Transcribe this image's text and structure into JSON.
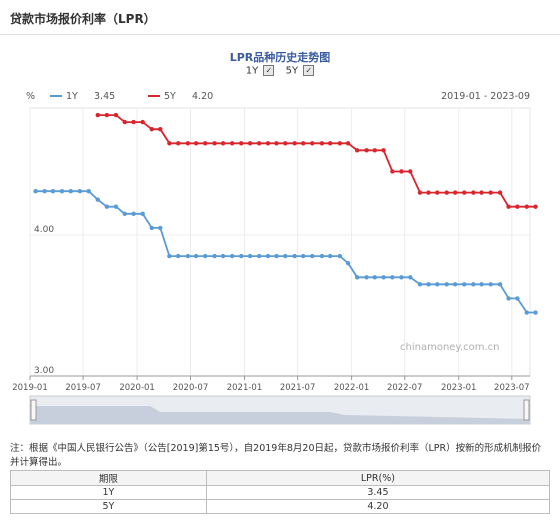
{
  "page": {
    "title": "贷款市场报价利率（LPR）"
  },
  "toggles": [
    {
      "label": "1Y",
      "checked": true,
      "mark": "✓"
    },
    {
      "label": "5Y",
      "checked": true,
      "mark": "✓"
    }
  ],
  "note": "注：根据《中国人民银行公告》（公告[2019]第15号），自2019年8月20日起，贷款市场报价利率（LPR）按新的形成机制报价并计算得出。",
  "table": {
    "headers": [
      "期限",
      "LPR(%)"
    ],
    "rows": [
      {
        "term": "1Y",
        "rate": "3.45"
      },
      {
        "term": "5Y",
        "rate": "4.20"
      }
    ]
  },
  "chart_data": {
    "type": "line",
    "title": "LPR品种历史走势图",
    "unit_label": "%",
    "date_range": "2019-01 - 2023-09",
    "watermark": "chinamoney.com.cn",
    "x_range": [
      "2019-01-01",
      "2023-09-01"
    ],
    "ylim": [
      3.0,
      4.9
    ],
    "y_ticks": [
      {
        "value": 3.0,
        "label": "3.00"
      },
      {
        "value": 4.0,
        "label": "4.00"
      }
    ],
    "x_ticks": [
      "2019-01",
      "2019-07",
      "2020-01",
      "2020-07",
      "2021-01",
      "2021-07",
      "2022-01",
      "2022-07",
      "2023-01",
      "2023-07"
    ],
    "grid": true,
    "legend_position": "top-left",
    "series": [
      {
        "name": "1Y",
        "latest": "3.45",
        "color": "#5b9bd5",
        "points": [
          [
            "2019-01-20",
            4.31
          ],
          [
            "2019-02-20",
            4.31
          ],
          [
            "2019-03-20",
            4.31
          ],
          [
            "2019-04-20",
            4.31
          ],
          [
            "2019-05-20",
            4.31
          ],
          [
            "2019-06-20",
            4.31
          ],
          [
            "2019-07-20",
            4.31
          ],
          [
            "2019-08-20",
            4.25
          ],
          [
            "2019-09-20",
            4.2
          ],
          [
            "2019-10-21",
            4.2
          ],
          [
            "2019-11-20",
            4.15
          ],
          [
            "2019-12-20",
            4.15
          ],
          [
            "2020-01-20",
            4.15
          ],
          [
            "2020-02-20",
            4.05
          ],
          [
            "2020-03-20",
            4.05
          ],
          [
            "2020-04-20",
            3.85
          ],
          [
            "2020-05-20",
            3.85
          ],
          [
            "2020-06-22",
            3.85
          ],
          [
            "2020-07-20",
            3.85
          ],
          [
            "2020-08-20",
            3.85
          ],
          [
            "2020-09-21",
            3.85
          ],
          [
            "2020-10-20",
            3.85
          ],
          [
            "2020-11-20",
            3.85
          ],
          [
            "2020-12-21",
            3.85
          ],
          [
            "2021-01-20",
            3.85
          ],
          [
            "2021-02-20",
            3.85
          ],
          [
            "2021-03-22",
            3.85
          ],
          [
            "2021-04-20",
            3.85
          ],
          [
            "2021-05-20",
            3.85
          ],
          [
            "2021-06-21",
            3.85
          ],
          [
            "2021-07-20",
            3.85
          ],
          [
            "2021-08-20",
            3.85
          ],
          [
            "2021-09-22",
            3.85
          ],
          [
            "2021-10-20",
            3.85
          ],
          [
            "2021-11-22",
            3.85
          ],
          [
            "2021-12-20",
            3.8
          ],
          [
            "2022-01-20",
            3.7
          ],
          [
            "2022-02-21",
            3.7
          ],
          [
            "2022-03-21",
            3.7
          ],
          [
            "2022-04-20",
            3.7
          ],
          [
            "2022-05-20",
            3.7
          ],
          [
            "2022-06-20",
            3.7
          ],
          [
            "2022-07-20",
            3.7
          ],
          [
            "2022-08-22",
            3.65
          ],
          [
            "2022-09-20",
            3.65
          ],
          [
            "2022-10-20",
            3.65
          ],
          [
            "2022-11-21",
            3.65
          ],
          [
            "2022-12-20",
            3.65
          ],
          [
            "2023-01-20",
            3.65
          ],
          [
            "2023-02-20",
            3.65
          ],
          [
            "2023-03-20",
            3.65
          ],
          [
            "2023-04-20",
            3.65
          ],
          [
            "2023-05-22",
            3.65
          ],
          [
            "2023-06-20",
            3.55
          ],
          [
            "2023-07-20",
            3.55
          ],
          [
            "2023-08-21",
            3.45
          ],
          [
            "2023-09-20",
            3.45
          ]
        ]
      },
      {
        "name": "5Y",
        "latest": "4.20",
        "color": "#d9262e",
        "points": [
          [
            "2019-08-20",
            4.85
          ],
          [
            "2019-09-20",
            4.85
          ],
          [
            "2019-10-21",
            4.85
          ],
          [
            "2019-11-20",
            4.8
          ],
          [
            "2019-12-20",
            4.8
          ],
          [
            "2020-01-20",
            4.8
          ],
          [
            "2020-02-20",
            4.75
          ],
          [
            "2020-03-20",
            4.75
          ],
          [
            "2020-04-20",
            4.65
          ],
          [
            "2020-05-20",
            4.65
          ],
          [
            "2020-06-22",
            4.65
          ],
          [
            "2020-07-20",
            4.65
          ],
          [
            "2020-08-20",
            4.65
          ],
          [
            "2020-09-21",
            4.65
          ],
          [
            "2020-10-20",
            4.65
          ],
          [
            "2020-11-20",
            4.65
          ],
          [
            "2020-12-21",
            4.65
          ],
          [
            "2021-01-20",
            4.65
          ],
          [
            "2021-02-20",
            4.65
          ],
          [
            "2021-03-22",
            4.65
          ],
          [
            "2021-04-20",
            4.65
          ],
          [
            "2021-05-20",
            4.65
          ],
          [
            "2021-06-21",
            4.65
          ],
          [
            "2021-07-20",
            4.65
          ],
          [
            "2021-08-20",
            4.65
          ],
          [
            "2021-09-22",
            4.65
          ],
          [
            "2021-10-20",
            4.65
          ],
          [
            "2021-11-22",
            4.65
          ],
          [
            "2021-12-20",
            4.65
          ],
          [
            "2022-01-20",
            4.6
          ],
          [
            "2022-02-21",
            4.6
          ],
          [
            "2022-03-21",
            4.6
          ],
          [
            "2022-04-20",
            4.6
          ],
          [
            "2022-05-20",
            4.45
          ],
          [
            "2022-06-20",
            4.45
          ],
          [
            "2022-07-20",
            4.45
          ],
          [
            "2022-08-22",
            4.3
          ],
          [
            "2022-09-20",
            4.3
          ],
          [
            "2022-10-20",
            4.3
          ],
          [
            "2022-11-21",
            4.3
          ],
          [
            "2022-12-20",
            4.3
          ],
          [
            "2023-01-20",
            4.3
          ],
          [
            "2023-02-20",
            4.3
          ],
          [
            "2023-03-20",
            4.3
          ],
          [
            "2023-04-20",
            4.3
          ],
          [
            "2023-05-22",
            4.3
          ],
          [
            "2023-06-20",
            4.2
          ],
          [
            "2023-07-20",
            4.2
          ],
          [
            "2023-08-21",
            4.2
          ],
          [
            "2023-09-20",
            4.2
          ]
        ]
      }
    ]
  }
}
